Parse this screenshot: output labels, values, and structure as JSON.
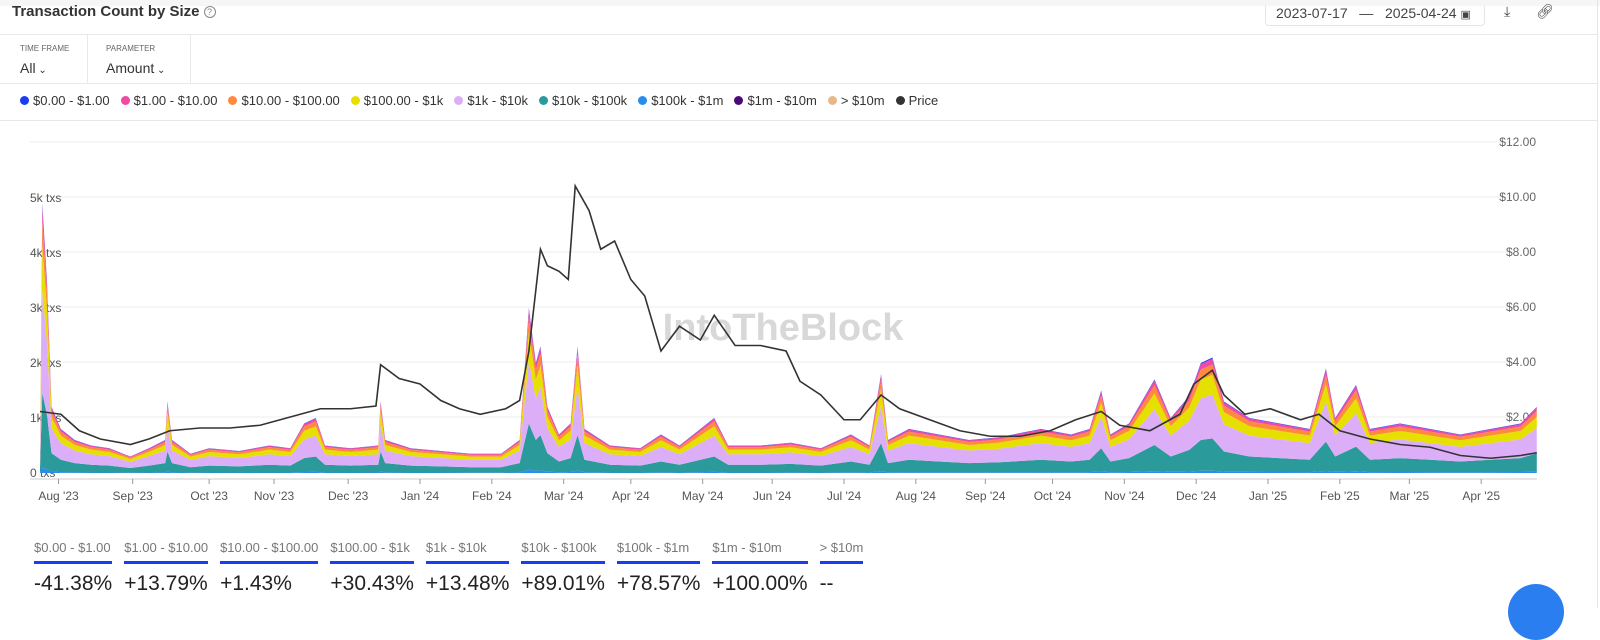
{
  "header": {
    "title": "Transaction Count by Size",
    "date_start": "2023-07-17",
    "date_sep": "—",
    "date_end": "2025-04-24"
  },
  "controls": {
    "timeframe_label": "TIME FRAME",
    "timeframe_value": "All",
    "parameter_label": "PARAMETER",
    "parameter_value": "Amount"
  },
  "watermark": "IntoTheBlock",
  "legend": [
    {
      "label": "$0.00 - $1.00",
      "color": "#1a3cf5"
    },
    {
      "label": "$1.00 - $10.00",
      "color": "#f04aa6"
    },
    {
      "label": "$10.00 - $100.00",
      "color": "#ff8a3d"
    },
    {
      "label": "$100.00 - $1k",
      "color": "#e6e000"
    },
    {
      "label": "$1k - $10k",
      "color": "#dcaef7"
    },
    {
      "label": "$10k - $100k",
      "color": "#2a9a9a"
    },
    {
      "label": "$100k - $1m",
      "color": "#2b8cf0"
    },
    {
      "label": "$1m - $10m",
      "color": "#4b0a7a"
    },
    {
      "label": "> $10m",
      "color": "#e8b88a"
    },
    {
      "label": "Price",
      "color": "#333333"
    }
  ],
  "stats": [
    {
      "label": "$0.00 - $1.00",
      "value": "-41.38%"
    },
    {
      "label": "$1.00 - $10.00",
      "value": "+13.79%"
    },
    {
      "label": "$10.00 - $100.00",
      "value": "+1.43%"
    },
    {
      "label": "$100.00 - $1k",
      "value": "+30.43%"
    },
    {
      "label": "$1k - $10k",
      "value": "+13.48%"
    },
    {
      "label": "$10k - $100k",
      "value": "+89.01%"
    },
    {
      "label": "$100k - $1m",
      "value": "+78.57%"
    },
    {
      "label": "$1m - $10m",
      "value": "+100.00%"
    },
    {
      "label": "> $10m",
      "value": "--"
    }
  ],
  "chart_data": {
    "type": "area",
    "title": "Transaction Count by Size",
    "x_unit": "days since 2023-07-17",
    "xlim": [
      0,
      646
    ],
    "x_ticks": [
      {
        "label": "Aug '23",
        "day": 8
      },
      {
        "label": "Sep '23",
        "day": 40
      },
      {
        "label": "Oct '23",
        "day": 73
      },
      {
        "label": "Nov '23",
        "day": 101
      },
      {
        "label": "Dec '23",
        "day": 133
      },
      {
        "label": "Jan '24",
        "day": 164
      },
      {
        "label": "Feb '24",
        "day": 195
      },
      {
        "label": "Mar '24",
        "day": 226
      },
      {
        "label": "Apr '24",
        "day": 255
      },
      {
        "label": "May '24",
        "day": 286
      },
      {
        "label": "Jun '24",
        "day": 316
      },
      {
        "label": "Jul '24",
        "day": 347
      },
      {
        "label": "Aug '24",
        "day": 378
      },
      {
        "label": "Sep '24",
        "day": 408
      },
      {
        "label": "Oct '24",
        "day": 437
      },
      {
        "label": "Nov '24",
        "day": 468
      },
      {
        "label": "Dec '24",
        "day": 499
      },
      {
        "label": "Jan '25",
        "day": 530
      },
      {
        "label": "Feb '25",
        "day": 561
      },
      {
        "label": "Mar '25",
        "day": 591
      },
      {
        "label": "Apr '25",
        "day": 622
      }
    ],
    "y_left": {
      "ticks": [
        "0 txs",
        "1k txs",
        "2k txs",
        "3k txs",
        "4k txs",
        "5k txs"
      ],
      "tick_values": [
        0,
        1000,
        2000,
        3000,
        4000,
        5000
      ]
    },
    "y_right": {
      "ticks": [
        "$2.00",
        "$4.00",
        "$6.00",
        "$8.00",
        "$10.00",
        "$12.00"
      ],
      "tick_values": [
        2,
        4,
        6,
        8,
        10,
        12
      ],
      "ylim": [
        0,
        12
      ]
    },
    "stack_order_bottom_up": [
      "$100k - $1m",
      "$10k - $100k",
      "$1k - $10k",
      "$100.00 - $1k",
      "$10.00 - $100.00",
      "$1.00 - $10.00",
      "$0.00 - $1.00"
    ],
    "stack_shares": [
      0.02,
      0.28,
      0.38,
      0.17,
      0.09,
      0.05,
      0.01
    ],
    "total_txs": [
      [
        0,
        300
      ],
      [
        1,
        4900
      ],
      [
        3,
        3500
      ],
      [
        5,
        1200
      ],
      [
        9,
        800
      ],
      [
        15,
        600
      ],
      [
        22,
        500
      ],
      [
        30,
        450
      ],
      [
        39,
        300
      ],
      [
        47,
        450
      ],
      [
        54,
        600
      ],
      [
        55,
        1300
      ],
      [
        57,
        600
      ],
      [
        65,
        350
      ],
      [
        73,
        450
      ],
      [
        86,
        400
      ],
      [
        99,
        500
      ],
      [
        108,
        450
      ],
      [
        114,
        900
      ],
      [
        119,
        1000
      ],
      [
        123,
        500
      ],
      [
        134,
        450
      ],
      [
        146,
        500
      ],
      [
        147,
        1300
      ],
      [
        149,
        600
      ],
      [
        160,
        450
      ],
      [
        173,
        400
      ],
      [
        186,
        350
      ],
      [
        199,
        350
      ],
      [
        207,
        600
      ],
      [
        211,
        3000
      ],
      [
        214,
        2000
      ],
      [
        216,
        2300
      ],
      [
        219,
        1200
      ],
      [
        224,
        700
      ],
      [
        229,
        900
      ],
      [
        232,
        2300
      ],
      [
        235,
        800
      ],
      [
        246,
        500
      ],
      [
        259,
        450
      ],
      [
        268,
        700
      ],
      [
        276,
        500
      ],
      [
        291,
        1000
      ],
      [
        297,
        500
      ],
      [
        311,
        500
      ],
      [
        324,
        550
      ],
      [
        337,
        450
      ],
      [
        350,
        700
      ],
      [
        358,
        500
      ],
      [
        363,
        1800
      ],
      [
        366,
        600
      ],
      [
        375,
        800
      ],
      [
        388,
        700
      ],
      [
        401,
        600
      ],
      [
        414,
        650
      ],
      [
        432,
        800
      ],
      [
        445,
        700
      ],
      [
        453,
        800
      ],
      [
        458,
        1500
      ],
      [
        462,
        700
      ],
      [
        470,
        900
      ],
      [
        481,
        1700
      ],
      [
        488,
        1000
      ],
      [
        496,
        1400
      ],
      [
        501,
        2000
      ],
      [
        506,
        2100
      ],
      [
        511,
        1300
      ],
      [
        522,
        1000
      ],
      [
        535,
        900
      ],
      [
        548,
        800
      ],
      [
        555,
        1900
      ],
      [
        559,
        1000
      ],
      [
        568,
        1600
      ],
      [
        574,
        800
      ],
      [
        587,
        900
      ],
      [
        600,
        800
      ],
      [
        613,
        700
      ],
      [
        626,
        800
      ],
      [
        639,
        900
      ],
      [
        646,
        1200
      ]
    ],
    "price": [
      [
        0,
        2.2
      ],
      [
        9,
        2.1
      ],
      [
        17,
        1.5
      ],
      [
        26,
        1.2
      ],
      [
        39,
        1.0
      ],
      [
        47,
        1.2
      ],
      [
        56,
        1.5
      ],
      [
        69,
        1.6
      ],
      [
        82,
        1.6
      ],
      [
        95,
        1.7
      ],
      [
        108,
        2.0
      ],
      [
        121,
        2.3
      ],
      [
        134,
        2.3
      ],
      [
        145,
        2.4
      ],
      [
        147,
        3.9
      ],
      [
        155,
        3.4
      ],
      [
        164,
        3.2
      ],
      [
        173,
        2.6
      ],
      [
        181,
        2.3
      ],
      [
        190,
        2.1
      ],
      [
        201,
        2.3
      ],
      [
        207,
        2.6
      ],
      [
        211,
        4.4
      ],
      [
        216,
        8.1
      ],
      [
        219,
        7.5
      ],
      [
        224,
        7.3
      ],
      [
        228,
        7.0
      ],
      [
        231,
        10.4
      ],
      [
        237,
        9.5
      ],
      [
        242,
        8.1
      ],
      [
        248,
        8.4
      ],
      [
        255,
        7.0
      ],
      [
        261,
        6.4
      ],
      [
        268,
        4.4
      ],
      [
        276,
        5.3
      ],
      [
        285,
        4.8
      ],
      [
        291,
        5.7
      ],
      [
        300,
        4.6
      ],
      [
        311,
        4.6
      ],
      [
        322,
        4.4
      ],
      [
        328,
        3.3
      ],
      [
        337,
        2.8
      ],
      [
        347,
        1.9
      ],
      [
        354,
        1.9
      ],
      [
        363,
        2.8
      ],
      [
        371,
        2.3
      ],
      [
        384,
        1.9
      ],
      [
        397,
        1.5
      ],
      [
        410,
        1.3
      ],
      [
        423,
        1.3
      ],
      [
        436,
        1.5
      ],
      [
        447,
        1.9
      ],
      [
        458,
        2.2
      ],
      [
        466,
        1.7
      ],
      [
        479,
        1.5
      ],
      [
        492,
        2.1
      ],
      [
        498,
        3.2
      ],
      [
        506,
        3.7
      ],
      [
        511,
        2.8
      ],
      [
        520,
        2.1
      ],
      [
        531,
        2.3
      ],
      [
        544,
        1.9
      ],
      [
        552,
        2.1
      ],
      [
        561,
        1.5
      ],
      [
        574,
        1.2
      ],
      [
        587,
        1.0
      ],
      [
        600,
        0.9
      ],
      [
        613,
        0.6
      ],
      [
        626,
        0.5
      ],
      [
        639,
        0.6
      ],
      [
        646,
        0.7
      ]
    ]
  }
}
